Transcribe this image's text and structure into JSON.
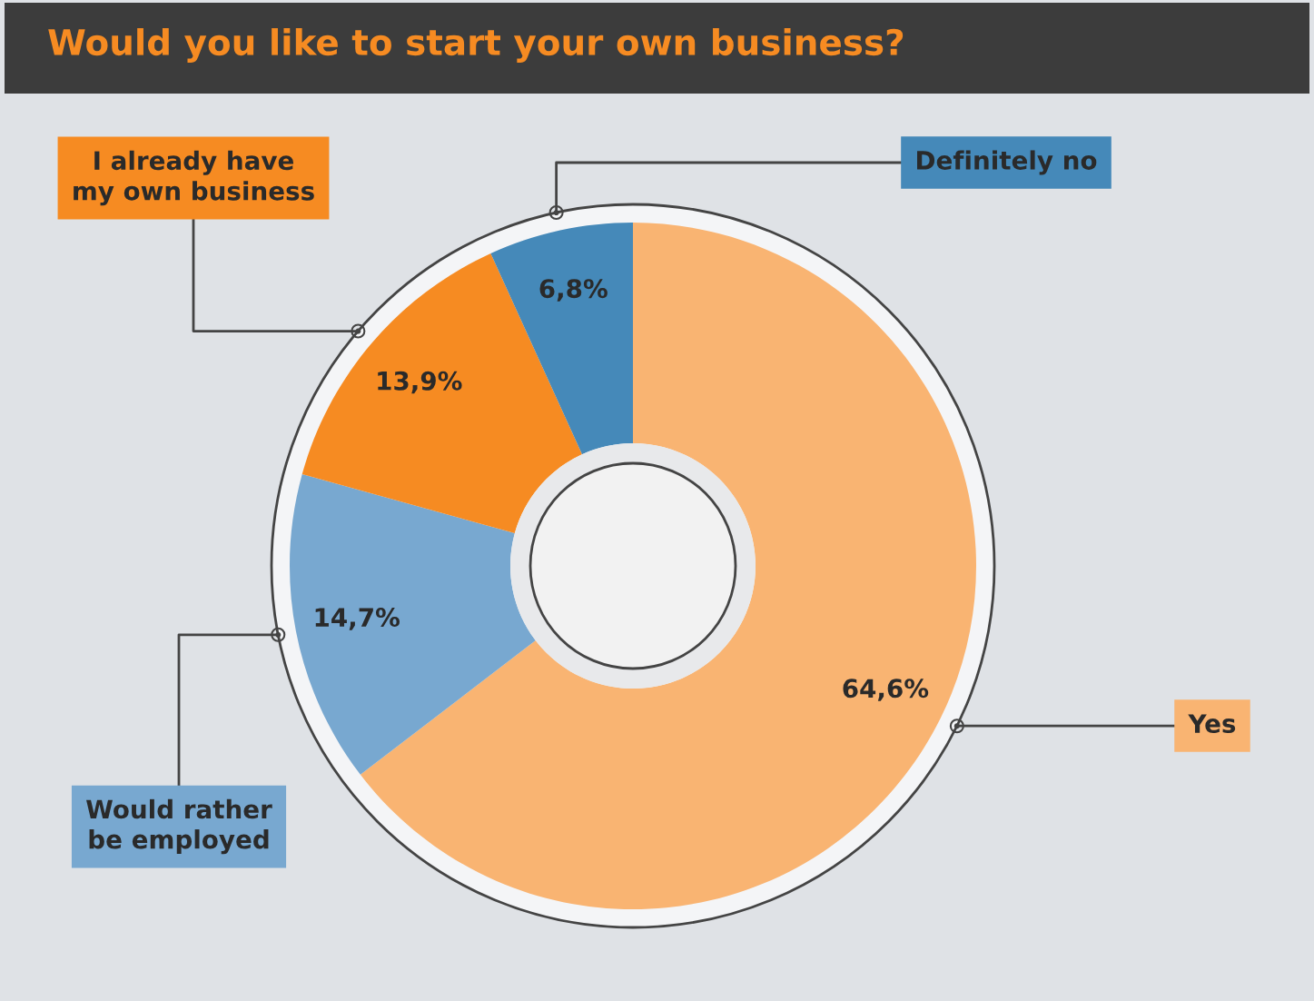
{
  "chart_data": {
    "type": "donut",
    "title": "Would you like to start your own business?",
    "categories": [
      "Yes",
      "Would rather\nbe employed",
      "I already have\nmy own business",
      "Definitely no"
    ],
    "values": [
      64.6,
      14.7,
      13.9,
      6.8
    ],
    "colors": [
      "#f9b472",
      "#78a8d0",
      "#f68b22",
      "#4589b9"
    ],
    "value_labels": [
      "64,6%",
      "14,7%",
      "13,9%",
      "6,8%"
    ]
  }
}
